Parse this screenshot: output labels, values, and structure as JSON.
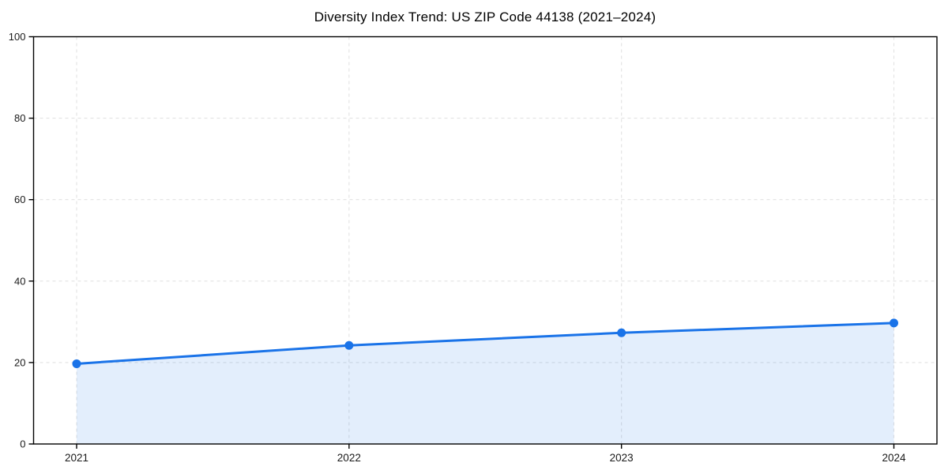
{
  "chart_data": {
    "type": "area",
    "title": "Diversity Index Trend: US ZIP Code 44138 (2021–2024)",
    "categories": [
      "2021",
      "2022",
      "2023",
      "2024"
    ],
    "x": [
      2021,
      2022,
      2023,
      2024
    ],
    "series": [
      {
        "name": "Diversity Index",
        "values": [
          19.7,
          24.2,
          27.3,
          29.7
        ]
      }
    ],
    "values": [
      19.7,
      24.2,
      27.3,
      29.7
    ],
    "xlabel": "",
    "ylabel": "",
    "ylim": [
      0,
      100
    ],
    "yticks": [
      0,
      20,
      40,
      60,
      80,
      100
    ],
    "grid": true,
    "grid_style": "dashed",
    "legend": "none",
    "marker": "circle",
    "colors": {
      "line": "#1a73e8",
      "marker": "#1a73e8",
      "fill": "rgba(26,115,232,0.12)",
      "grid": "#e2e2e2",
      "axis": "#000000",
      "title_text": "#000000",
      "tick_text": "#1a1a1a"
    }
  }
}
